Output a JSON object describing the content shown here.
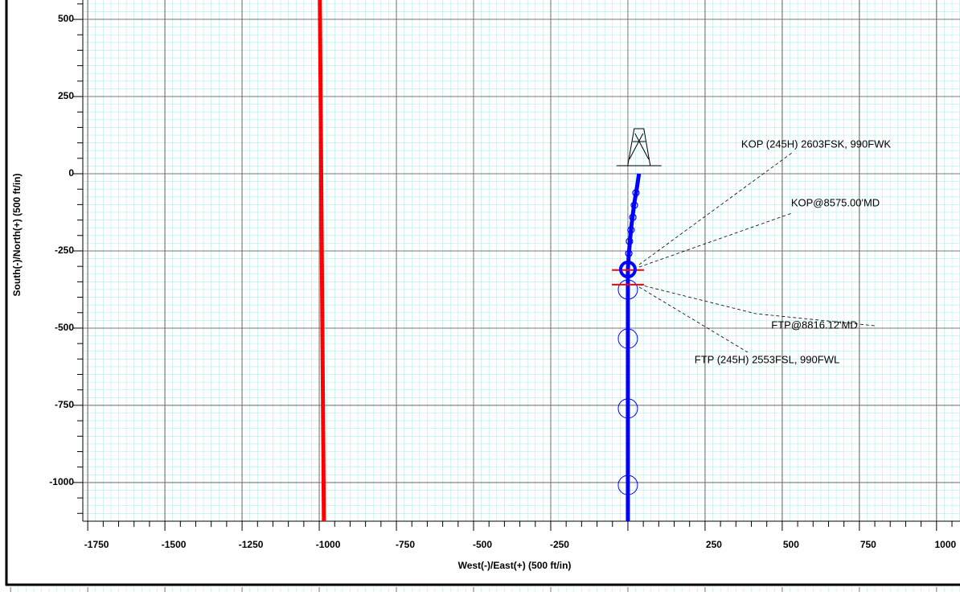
{
  "chart_data": {
    "type": "line",
    "x_label": "West(-)/East(+) (500 ft/in)",
    "y_label": "South(-)/North(+) (500 ft/in)",
    "xlim": [
      -1766,
      1076
    ],
    "ylim": [
      -1125,
      562.5
    ],
    "xticks": [
      -1750,
      -1500,
      -1250,
      -1000,
      -750,
      -500,
      -250,
      250,
      500,
      750,
      1000
    ],
    "yticks": [
      500,
      250,
      0,
      -250,
      -500,
      -750,
      -1000
    ],
    "grid": true,
    "series": [
      {
        "color": "#ff0000",
        "x": [
          -998,
          -985
        ],
        "y": [
          562.5,
          -1125
        ]
      },
      {
        "color": "#0000ff",
        "x": [
          36,
          30,
          20,
          10,
          3,
          0,
          0
        ],
        "y": [
          0,
          -40,
          -100,
          -180,
          -260,
          -310,
          -1125
        ]
      }
    ],
    "survey_points": {
      "color": "#0000ff",
      "x": [
        26,
        21,
        16,
        10,
        5,
        3
      ],
      "y": [
        -62,
        -102,
        -141,
        -182,
        -219,
        -258
      ]
    },
    "plan_points": {
      "color": "#0000ff",
      "x": [
        0,
        0,
        0,
        0
      ],
      "y": [
        -375,
        -534,
        -760,
        -1008
      ]
    },
    "kop_point": {
      "color": "#0000ff",
      "x": 0,
      "y": -310
    },
    "target_lines": {
      "color": "#ff0000",
      "x": [
        0,
        0
      ],
      "y": [
        -312,
        -359
      ]
    },
    "annotations": [
      "KOP (245H) 2603FSK, 990FWK",
      "KOP@8575.00'MD",
      "FTP@8816.12'MD",
      "FTP  (245H) 2553FSL, 990FWL"
    ]
  }
}
